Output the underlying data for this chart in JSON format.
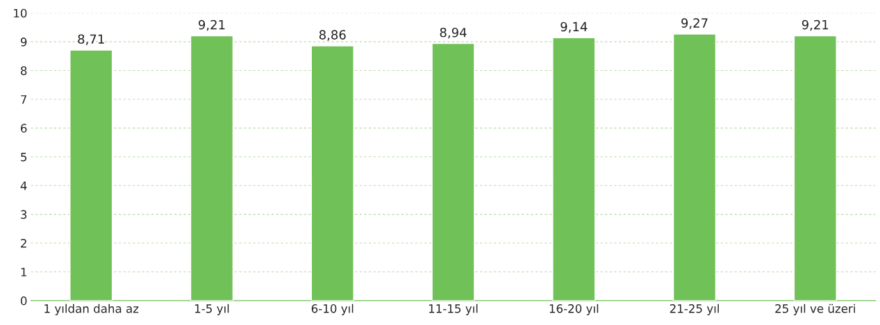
{
  "chart_data": {
    "type": "bar",
    "categories": [
      "1 yıldan daha az",
      "1-5 yıl",
      "6-10 yıl",
      "11-15 yıl",
      "16-20 yıl",
      "21-25 yıl",
      "25 yıl ve üzeri"
    ],
    "values": [
      8.71,
      9.21,
      8.86,
      8.94,
      9.14,
      9.27,
      9.21
    ],
    "value_labels": [
      "8,71",
      "9,21",
      "8,86",
      "8,94",
      "9,14",
      "9,27",
      "9,21"
    ],
    "color": "#70c157",
    "ylim": [
      0,
      10
    ],
    "yticks": [
      0,
      1,
      2,
      3,
      4,
      5,
      6,
      7,
      8,
      9,
      10
    ],
    "grid": "y",
    "legend": false
  }
}
